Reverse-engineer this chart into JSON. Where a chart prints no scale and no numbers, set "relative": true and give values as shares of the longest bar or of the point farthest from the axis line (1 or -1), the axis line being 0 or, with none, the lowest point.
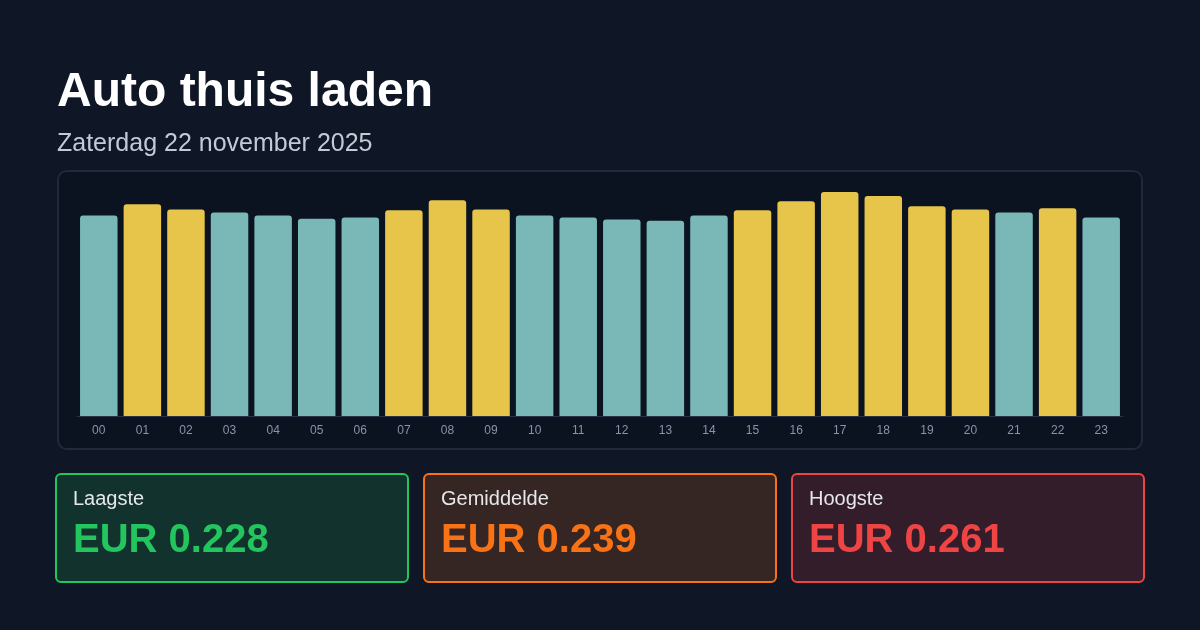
{
  "chart_data": [
    {
      "type": "bar",
      "title": "Auto thuis laden",
      "subtitle": "Zaterdag 22 november 2025",
      "relative": true,
      "categories": [
        "00",
        "01",
        "02",
        "03",
        "04",
        "05",
        "06",
        "07",
        "08",
        "09",
        "10",
        "11",
        "12",
        "13",
        "14",
        "15",
        "16",
        "17",
        "18",
        "19",
        "20",
        "21",
        "22",
        "23"
      ],
      "values": [
        0.895,
        0.945,
        0.922,
        0.909,
        0.895,
        0.881,
        0.886,
        0.918,
        0.963,
        0.922,
        0.895,
        0.886,
        0.877,
        0.872,
        0.895,
        0.918,
        0.959,
        1,
        0.982,
        0.936,
        0.922,
        0.909,
        0.927,
        0.886
      ],
      "colors": [
        "#7ab8b8",
        "#e6c54a",
        "#e6c54a",
        "#7ab8b8",
        "#7ab8b8",
        "#7ab8b8",
        "#7ab8b8",
        "#e6c54a",
        "#e6c54a",
        "#e6c54a",
        "#7ab8b8",
        "#7ab8b8",
        "#7ab8b8",
        "#7ab8b8",
        "#7ab8b8",
        "#e6c54a",
        "#e6c54a",
        "#e6c54a",
        "#e6c54a",
        "#e6c54a",
        "#e6c54a",
        "#7ab8b8",
        "#e6c54a",
        "#7ab8b8"
      ]
    },
    {
      "type": "other",
      "categories": [
        "Laagste",
        "Gemiddelde",
        "Hoogste"
      ],
      "value_labels": [
        "EUR 0.228",
        "EUR 0.239",
        "EUR 0.261"
      ],
      "colors": [
        "#22c55e",
        "#f97316",
        "#ef4444"
      ]
    }
  ]
}
